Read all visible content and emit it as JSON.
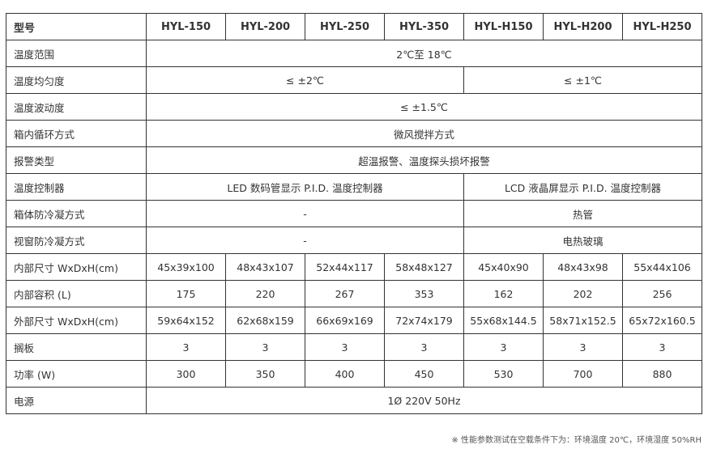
{
  "header": {
    "label": "型号",
    "models": [
      "HYL-150",
      "HYL-200",
      "HYL-250",
      "HYL-350",
      "HYL-H150",
      "HYL-H200",
      "HYL-H250"
    ]
  },
  "rows": {
    "temp_range": {
      "label": "温度范围",
      "value": "2℃至 18℃"
    },
    "uniformity": {
      "label": "温度均匀度",
      "a": "≤ ±2℃",
      "b": "≤ ±1℃"
    },
    "fluctuation": {
      "label": "温度波动度",
      "value": "≤ ±1.5℃"
    },
    "circulation": {
      "label": "箱内循环方式",
      "value": "微风搅拌方式"
    },
    "alarm": {
      "label": "报警类型",
      "value": "超温报警、温度探头损坏报警"
    },
    "controller": {
      "label": "温度控制器",
      "a": "LED 数码管显示 P.I.D. 温度控制器",
      "b": "LCD 液晶屏显示 P.I.D. 温度控制器"
    },
    "cabinet_anti": {
      "label": "箱体防冷凝方式",
      "a": "-",
      "b": "热管"
    },
    "window_anti": {
      "label": "视窗防冷凝方式",
      "a": "-",
      "b": "电热玻璃"
    },
    "inner_size": {
      "label": "内部尺寸 WxDxH(cm)",
      "values": [
        "45x39x100",
        "48x43x107",
        "52x44x117",
        "58x48x127",
        "45x40x90",
        "48x43x98",
        "55x44x106"
      ]
    },
    "volume": {
      "label": "内部容积 (L)",
      "values": [
        "175",
        "220",
        "267",
        "353",
        "162",
        "202",
        "256"
      ]
    },
    "outer_size": {
      "label": "外部尺寸 WxDxH(cm)",
      "values": [
        "59x64x152",
        "62x68x159",
        "66x69x169",
        "72x74x179",
        "55x68x144.5",
        "58x71x152.5",
        "65x72x160.5"
      ]
    },
    "shelves": {
      "label": "搁板",
      "values": [
        "3",
        "3",
        "3",
        "3",
        "3",
        "3",
        "3"
      ]
    },
    "power": {
      "label": "功率 (W)",
      "values": [
        "300",
        "350",
        "400",
        "450",
        "530",
        "700",
        "880"
      ]
    },
    "supply": {
      "label": "电源",
      "value": "1Ø 220V 50Hz"
    }
  },
  "note": "※ 性能参数测试在空载条件下为：环境温度 20℃，环境湿度 50%RH"
}
